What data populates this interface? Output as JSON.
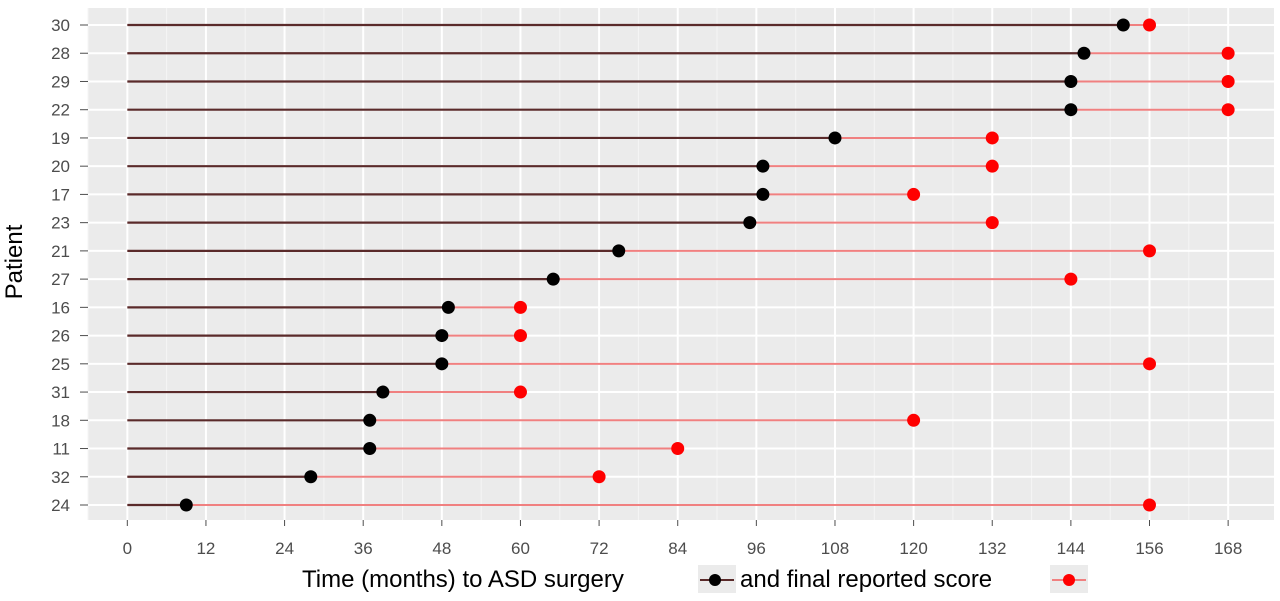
{
  "chart_data": {
    "type": "dumbbell",
    "ylabel": "Patient",
    "xlabel_parts": [
      "Time (months) to ASD surgery",
      "and final reported score"
    ],
    "xlim": [
      -6,
      175
    ],
    "xticks": [
      0,
      12,
      24,
      36,
      48,
      60,
      72,
      84,
      96,
      108,
      120,
      132,
      144,
      156,
      168
    ],
    "grid": true,
    "legend_placement": "inline-bottom",
    "series": [
      {
        "role": "segment_start",
        "value": 0
      },
      {
        "role": "surgery",
        "color": "#000000",
        "line_color": "#5a2a2a"
      },
      {
        "role": "final_score",
        "color": "#ff0000",
        "line_color": "#f08080"
      }
    ],
    "patients": [
      {
        "id": "30",
        "surgery": 152,
        "final": 156
      },
      {
        "id": "28",
        "surgery": 146,
        "final": 168
      },
      {
        "id": "29",
        "surgery": 144,
        "final": 168
      },
      {
        "id": "22",
        "surgery": 144,
        "final": 168
      },
      {
        "id": "19",
        "surgery": 108,
        "final": 132
      },
      {
        "id": "20",
        "surgery": 97,
        "final": 132
      },
      {
        "id": "17",
        "surgery": 97,
        "final": 120
      },
      {
        "id": "23",
        "surgery": 95,
        "final": 132
      },
      {
        "id": "21",
        "surgery": 75,
        "final": 156
      },
      {
        "id": "27",
        "surgery": 65,
        "final": 144
      },
      {
        "id": "16",
        "surgery": 49,
        "final": 60
      },
      {
        "id": "26",
        "surgery": 48,
        "final": 60
      },
      {
        "id": "25",
        "surgery": 48,
        "final": 156
      },
      {
        "id": "31",
        "surgery": 39,
        "final": 60
      },
      {
        "id": "18",
        "surgery": 37,
        "final": 120
      },
      {
        "id": "11",
        "surgery": 37,
        "final": 84
      },
      {
        "id": "32",
        "surgery": 28,
        "final": 72
      },
      {
        "id": "24",
        "surgery": 9,
        "final": 156
      }
    ]
  }
}
